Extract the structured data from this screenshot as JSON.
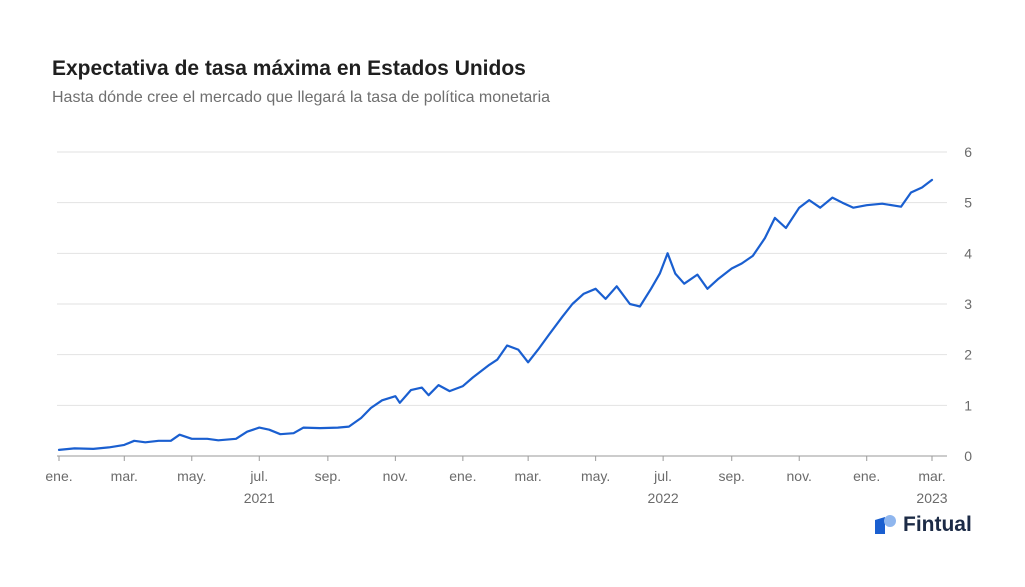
{
  "header": {
    "title": "Expectativa de tasa máxima en Estados Unidos",
    "subtitle": "Hasta dónde cree el mercado que llegará la tasa de política monetaria"
  },
  "brand": {
    "name": "Fintual",
    "logo_icon": "fintual-logo-icon",
    "color": "#1a5fd0"
  },
  "chart_data": {
    "type": "line",
    "title": "Expectativa de tasa máxima en Estados Unidos",
    "subtitle": "Hasta dónde cree el mercado que llegará la tasa de política monetaria",
    "xlabel": "",
    "ylabel": "",
    "ylim": [
      0,
      6
    ],
    "yticks": [
      0,
      1,
      2,
      3,
      4,
      5,
      6
    ],
    "y_axis_side": "right",
    "grid": true,
    "line_color": "#1a5fd0",
    "x_ticks": [
      {
        "label": "ene.",
        "date": "2021-01-01"
      },
      {
        "label": "mar.",
        "date": "2021-03-01"
      },
      {
        "label": "may.",
        "date": "2021-05-01"
      },
      {
        "label": "jul.",
        "date": "2021-07-01"
      },
      {
        "label": "sep.",
        "date": "2021-09-01"
      },
      {
        "label": "nov.",
        "date": "2021-11-01"
      },
      {
        "label": "ene.",
        "date": "2022-01-01"
      },
      {
        "label": "mar.",
        "date": "2022-03-01"
      },
      {
        "label": "may.",
        "date": "2022-05-01"
      },
      {
        "label": "jul.",
        "date": "2022-07-01"
      },
      {
        "label": "sep.",
        "date": "2022-09-01"
      },
      {
        "label": "nov.",
        "date": "2022-11-01"
      },
      {
        "label": "ene.",
        "date": "2023-01-01"
      },
      {
        "label": "mar.",
        "date": "2023-03-01"
      }
    ],
    "year_labels": [
      {
        "label": "2021",
        "date": "2021-07-01"
      },
      {
        "label": "2022",
        "date": "2022-07-01"
      },
      {
        "label": "2023",
        "date": "2023-03-01"
      }
    ],
    "series": [
      {
        "values": [
          [
            "2021-01-01",
            0.12
          ],
          [
            "2021-01-15",
            0.15
          ],
          [
            "2021-02-01",
            0.14
          ],
          [
            "2021-02-15",
            0.17
          ],
          [
            "2021-03-01",
            0.22
          ],
          [
            "2021-03-10",
            0.3
          ],
          [
            "2021-03-20",
            0.27
          ],
          [
            "2021-04-01",
            0.3
          ],
          [
            "2021-04-12",
            0.3
          ],
          [
            "2021-04-20",
            0.42
          ],
          [
            "2021-05-01",
            0.34
          ],
          [
            "2021-05-15",
            0.34
          ],
          [
            "2021-05-25",
            0.31
          ],
          [
            "2021-06-10",
            0.34
          ],
          [
            "2021-06-20",
            0.48
          ],
          [
            "2021-07-01",
            0.56
          ],
          [
            "2021-07-10",
            0.52
          ],
          [
            "2021-07-20",
            0.43
          ],
          [
            "2021-08-01",
            0.45
          ],
          [
            "2021-08-10",
            0.56
          ],
          [
            "2021-08-25",
            0.55
          ],
          [
            "2021-09-10",
            0.56
          ],
          [
            "2021-09-20",
            0.58
          ],
          [
            "2021-10-01",
            0.75
          ],
          [
            "2021-10-10",
            0.95
          ],
          [
            "2021-10-20",
            1.1
          ],
          [
            "2021-11-01",
            1.18
          ],
          [
            "2021-11-05",
            1.05
          ],
          [
            "2021-11-15",
            1.3
          ],
          [
            "2021-11-25",
            1.35
          ],
          [
            "2021-12-01",
            1.2
          ],
          [
            "2021-12-10",
            1.4
          ],
          [
            "2021-12-20",
            1.28
          ],
          [
            "2022-01-01",
            1.38
          ],
          [
            "2022-01-10",
            1.55
          ],
          [
            "2022-01-25",
            1.8
          ],
          [
            "2022-02-01",
            1.9
          ],
          [
            "2022-02-10",
            2.18
          ],
          [
            "2022-02-20",
            2.1
          ],
          [
            "2022-03-01",
            1.85
          ],
          [
            "2022-03-10",
            2.1
          ],
          [
            "2022-03-20",
            2.4
          ],
          [
            "2022-04-01",
            2.75
          ],
          [
            "2022-04-10",
            3.0
          ],
          [
            "2022-04-20",
            3.2
          ],
          [
            "2022-05-01",
            3.3
          ],
          [
            "2022-05-10",
            3.1
          ],
          [
            "2022-05-20",
            3.35
          ],
          [
            "2022-06-01",
            3.0
          ],
          [
            "2022-06-10",
            2.95
          ],
          [
            "2022-06-20",
            3.3
          ],
          [
            "2022-06-28",
            3.6
          ],
          [
            "2022-07-05",
            4.0
          ],
          [
            "2022-07-12",
            3.6
          ],
          [
            "2022-07-20",
            3.4
          ],
          [
            "2022-08-01",
            3.58
          ],
          [
            "2022-08-10",
            3.3
          ],
          [
            "2022-08-20",
            3.5
          ],
          [
            "2022-09-01",
            3.7
          ],
          [
            "2022-09-10",
            3.8
          ],
          [
            "2022-09-20",
            3.95
          ],
          [
            "2022-10-01",
            4.3
          ],
          [
            "2022-10-10",
            4.7
          ],
          [
            "2022-10-20",
            4.5
          ],
          [
            "2022-11-01",
            4.9
          ],
          [
            "2022-11-10",
            5.05
          ],
          [
            "2022-11-20",
            4.9
          ],
          [
            "2022-12-01",
            5.1
          ],
          [
            "2022-12-10",
            5.0
          ],
          [
            "2022-12-20",
            4.9
          ],
          [
            "2023-01-01",
            4.95
          ],
          [
            "2023-01-15",
            4.98
          ],
          [
            "2023-02-01",
            4.92
          ],
          [
            "2023-02-10",
            5.2
          ],
          [
            "2023-02-20",
            5.3
          ],
          [
            "2023-03-01",
            5.45
          ]
        ]
      }
    ]
  }
}
